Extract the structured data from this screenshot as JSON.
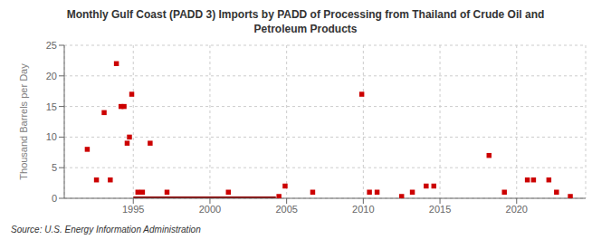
{
  "chart_data": {
    "type": "scatter",
    "title": "Monthly Gulf Coast (PADD 3) Imports by PADD of Processing from Thailand of Crude Oil and\nPetroleum Products",
    "ylabel": "Thousand Barrels per Day",
    "annotation": "Source: U.S. Energy Information Administration",
    "xlim": [
      1990.5,
      2024.5
    ],
    "ylim": [
      0,
      25
    ],
    "xticks": [
      1995,
      2000,
      2005,
      2010,
      2015,
      2020
    ],
    "yticks": [
      0,
      5,
      10,
      15,
      20,
      25
    ],
    "grid": true,
    "series": [
      {
        "type": "line",
        "color": "#8b0000",
        "line_style": "solid",
        "x": [
          1995.0,
          2004.3
        ],
        "values": [
          0.15,
          0.15
        ]
      },
      {
        "type": "scatter",
        "color": "#cc0000",
        "marker": "square",
        "x": [
          1992.0,
          1992.6,
          1993.1,
          1993.5,
          1993.9,
          1994.2,
          1994.4,
          1994.6,
          1994.75,
          1994.9,
          1995.3,
          1995.6,
          1996.1,
          1997.2,
          2001.2,
          2004.5,
          2004.9,
          2006.7,
          2009.9,
          2010.4,
          2010.9,
          2012.5,
          2013.2,
          2014.1,
          2014.6,
          2018.2,
          2019.2,
          2020.7,
          2021.1,
          2022.1,
          2022.6,
          2023.5
        ],
        "values": [
          8.0,
          3.0,
          14.0,
          3.0,
          22.0,
          15.0,
          15.0,
          9.0,
          10.0,
          17.0,
          1.0,
          1.0,
          9.0,
          1.0,
          1.0,
          0.3,
          2.0,
          1.0,
          17.0,
          1.0,
          1.0,
          0.3,
          1.0,
          2.0,
          2.0,
          7.0,
          1.0,
          3.0,
          3.0,
          3.0,
          1.0,
          0.3
        ]
      }
    ]
  }
}
